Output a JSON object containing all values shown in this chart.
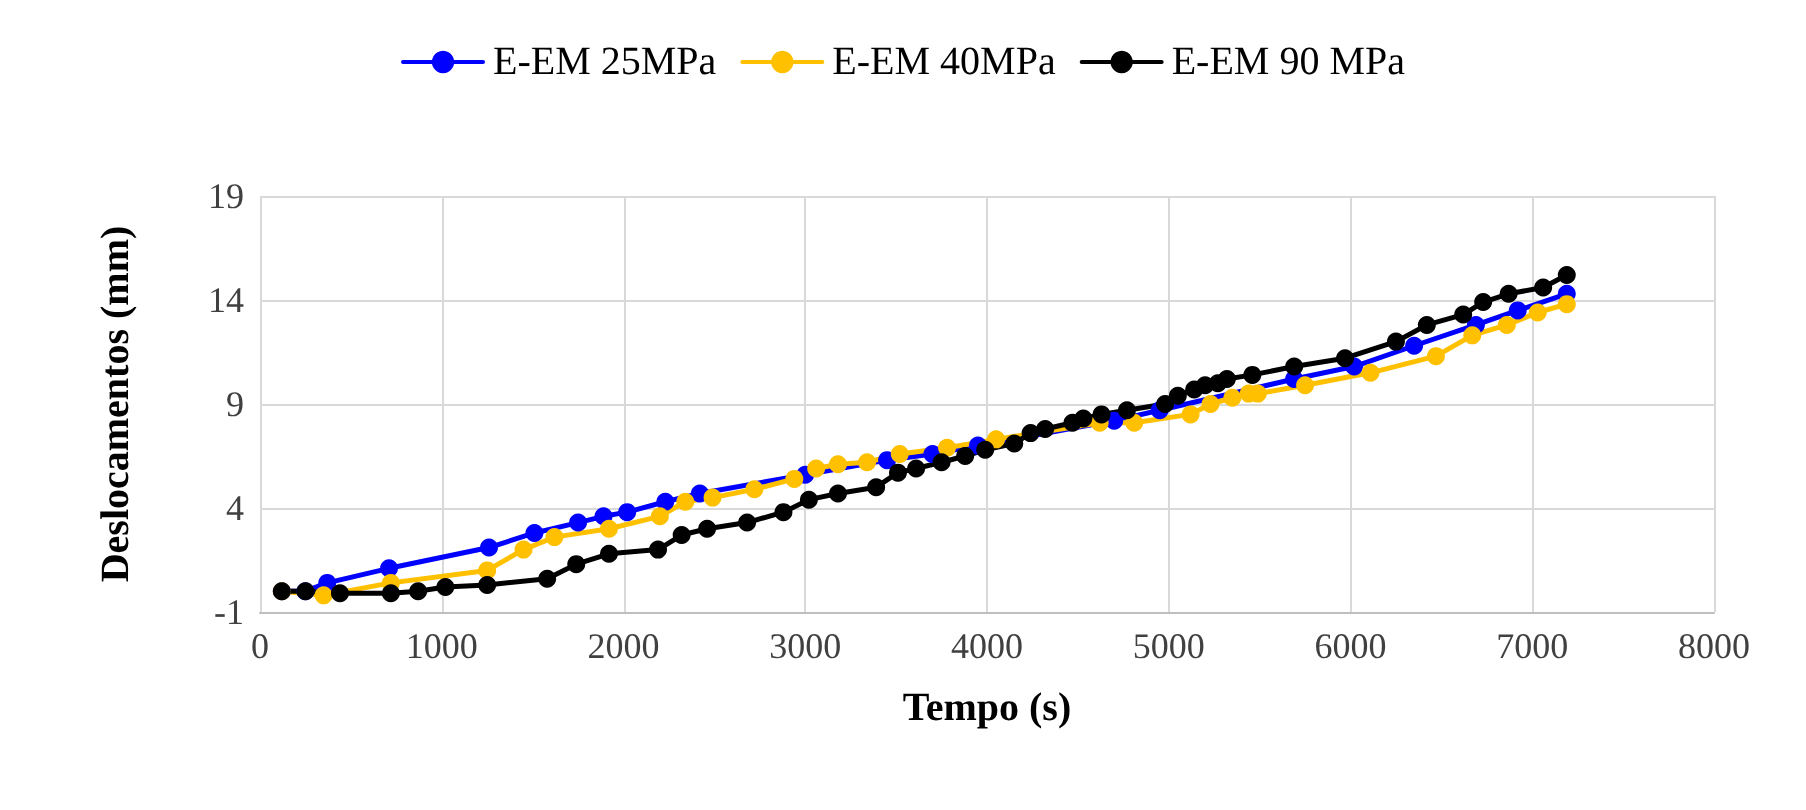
{
  "chart_data": {
    "type": "line",
    "xlabel": "Tempo (s)",
    "ylabel": "Deslocamentos (mm)",
    "xlim": [
      0,
      8000
    ],
    "xticks": [
      0,
      1000,
      2000,
      3000,
      4000,
      5000,
      6000,
      7000,
      8000
    ],
    "ylim": [
      -1,
      19
    ],
    "yticks": [
      -1,
      4,
      9,
      14,
      19
    ],
    "grid": true,
    "legend": "top",
    "marker": "circle",
    "line_style": "solid",
    "series": [
      {
        "name": "E-EM 25MPa",
        "color": "#0000ff",
        "x": [
          120,
          250,
          370,
          710,
          1260,
          1510,
          1750,
          1890,
          2020,
          2230,
          2420,
          2710,
          3000,
          3200,
          3450,
          3700,
          3950,
          4200,
          4450,
          4700,
          4950,
          5200,
          5500,
          5690,
          6020,
          6350,
          6690,
          6920,
          7190
        ],
        "values": [
          0,
          0,
          0.4,
          1.1,
          2.1,
          2.8,
          3.3,
          3.6,
          3.8,
          4.3,
          4.7,
          null,
          5.6,
          null,
          6.3,
          6.6,
          7.0,
          null,
          null,
          8.2,
          8.7,
          null,
          null,
          10.2,
          10.8,
          11.8,
          12.8,
          13.5,
          14.3
        ]
      },
      {
        "name": "E-EM 40MPa",
        "color": "#ffc000",
        "x": [
          120,
          350,
          720,
          1250,
          1450,
          1620,
          1920,
          2200,
          2340,
          2490,
          2720,
          2940,
          3060,
          3180,
          3340,
          3520,
          3780,
          4050,
          4620,
          4810,
          5120,
          5230,
          5350,
          5440,
          5490,
          5750,
          6110,
          6470,
          6670,
          6860,
          7030,
          7190
        ],
        "values": [
          0,
          -0.2,
          0.4,
          1.0,
          2.0,
          2.6,
          3.0,
          3.6,
          4.3,
          4.5,
          4.9,
          5.4,
          5.9,
          6.1,
          6.2,
          6.6,
          6.9,
          7.3,
          8.1,
          8.1,
          8.5,
          9.0,
          9.3,
          9.5,
          9.5,
          9.9,
          10.5,
          11.3,
          12.3,
          12.8,
          13.4,
          13.8
        ]
      },
      {
        "name": "E-EM 90 MPa",
        "color": "#000000",
        "x": [
          120,
          250,
          440,
          720,
          870,
          1020,
          1250,
          1580,
          1740,
          1920,
          2190,
          2320,
          2460,
          2680,
          2880,
          3020,
          3180,
          3390,
          3510,
          3610,
          3750,
          3880,
          3990,
          4150,
          4240,
          4320,
          4470,
          4530,
          4630,
          4770,
          4980,
          5050,
          5140,
          5200,
          5270,
          5320,
          5460,
          5690,
          5970,
          6250,
          6420,
          6620,
          6730,
          6870,
          7060,
          7190
        ],
        "values": [
          0,
          0,
          -0.1,
          -0.1,
          0,
          0.2,
          0.3,
          0.6,
          1.3,
          1.8,
          2.0,
          2.7,
          3.0,
          3.3,
          3.8,
          4.4,
          4.7,
          5.0,
          5.7,
          5.9,
          6.2,
          6.5,
          6.8,
          7.1,
          7.6,
          7.8,
          8.1,
          8.3,
          8.5,
          8.7,
          9.0,
          9.4,
          9.7,
          9.9,
          10.0,
          10.2,
          10.4,
          10.8,
          11.2,
          12.0,
          12.8,
          13.3,
          13.9,
          14.3,
          14.6,
          15.2
        ]
      }
    ]
  }
}
